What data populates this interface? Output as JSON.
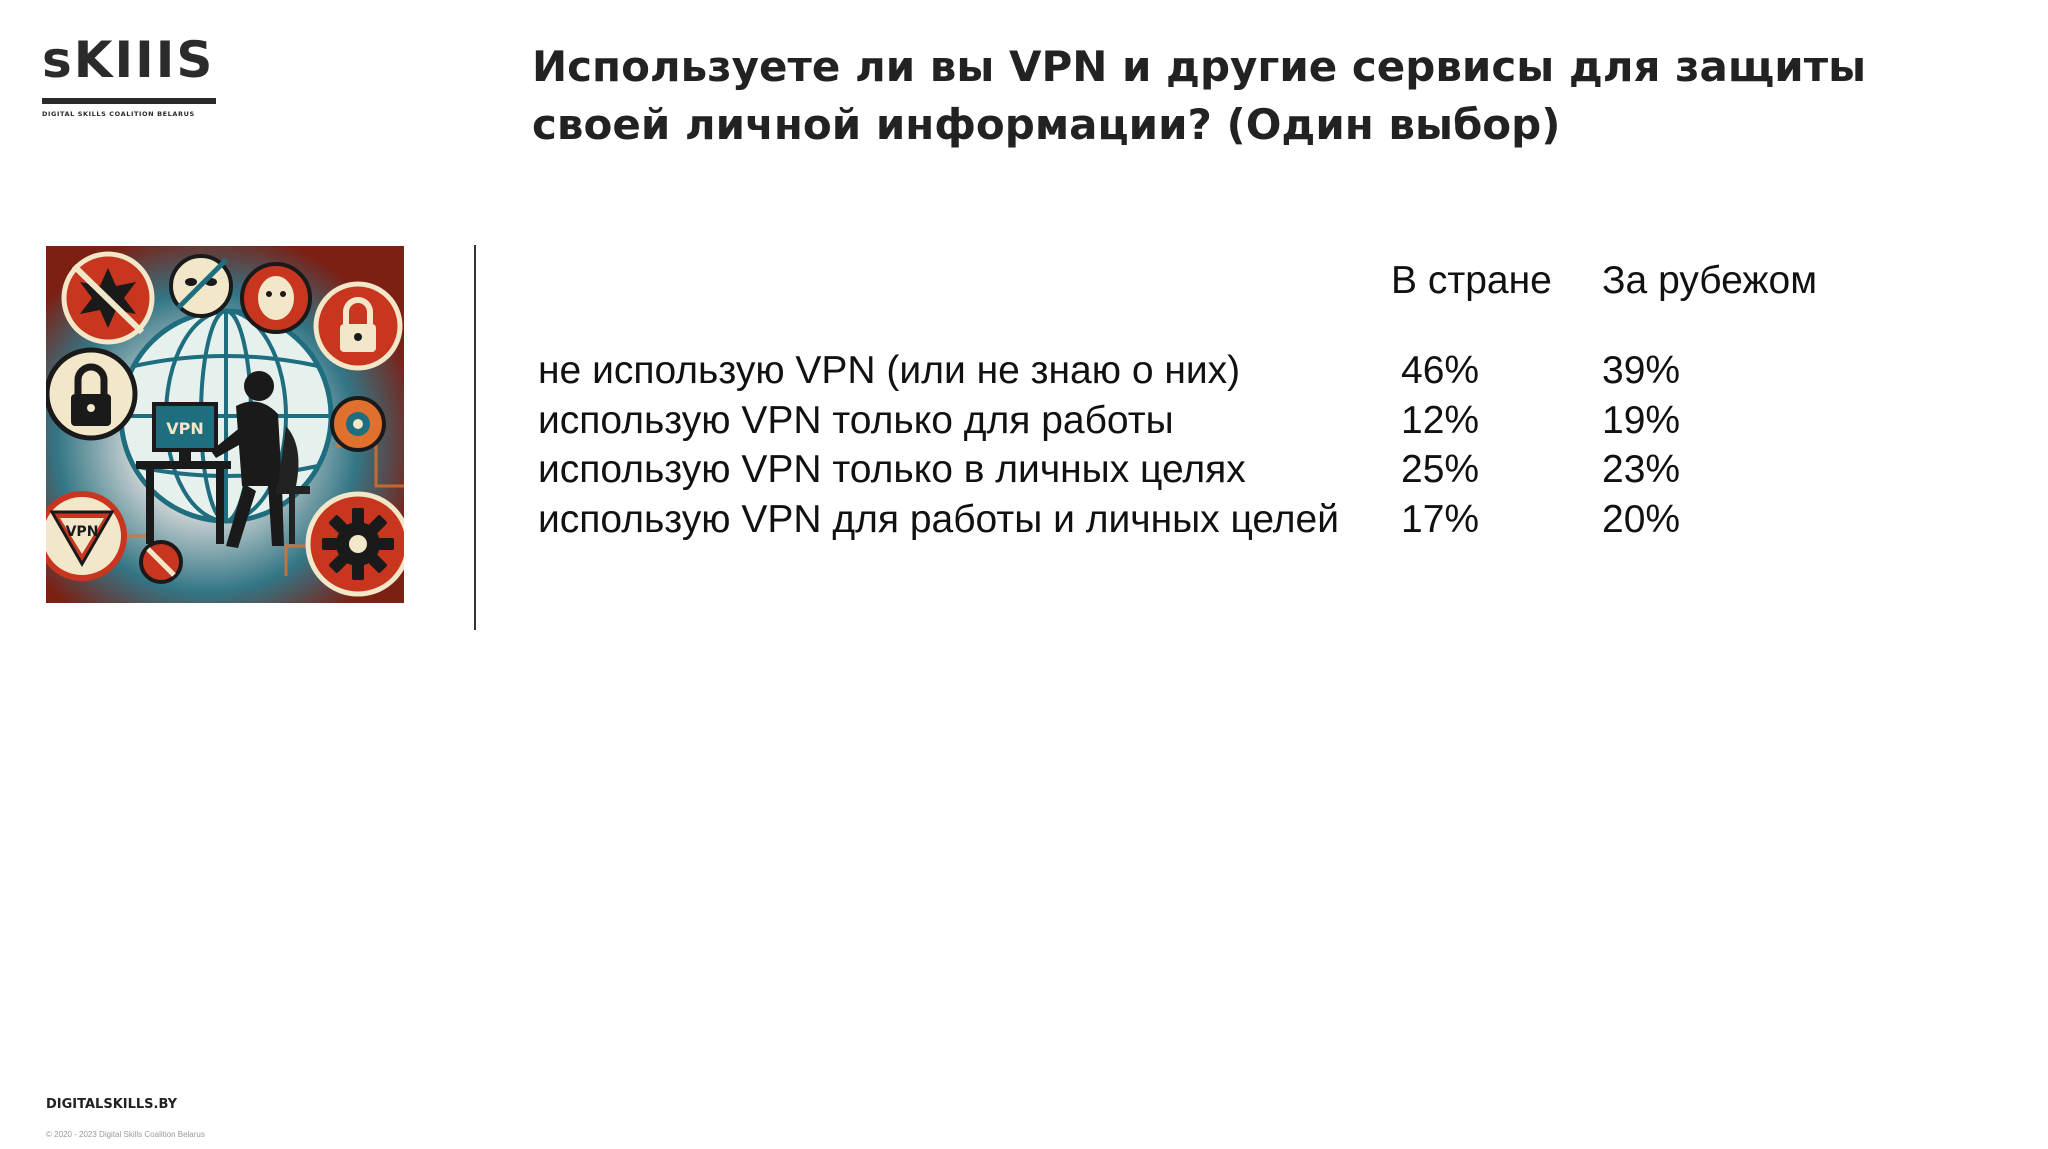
{
  "logo": {
    "wordmark": "sKIIIS",
    "tagline": "DIGITAL SKILLS COALITION BELARUS"
  },
  "title": "Используете ли вы VPN и другие сервисы для защиты своей личной информации? (Один выбор)",
  "illustration": {
    "monitor_text": "VPN",
    "sign_text": "VPN",
    "icons": [
      "lock-icon",
      "padlock-icon",
      "mask-icon",
      "gear-icon",
      "globe-icon",
      "hacker-silhouette"
    ],
    "colors": {
      "red": "#c8361f",
      "orange": "#e0702e",
      "teal": "#1e6e80",
      "cream": "#f3e7c9",
      "dark": "#1a1a1a"
    }
  },
  "table": {
    "columns": {
      "domestic": "В стране",
      "abroad": "За рубежом"
    },
    "rows": [
      {
        "label": "не использую VPN (или не знаю о них)",
        "domestic": "46%",
        "abroad": "39%"
      },
      {
        "label": "использую VPN только для работы",
        "domestic": "12%",
        "abroad": "19%"
      },
      {
        "label": "использую VPN только в личных целях",
        "domestic": "25%",
        "abroad": "23%"
      },
      {
        "label": "использую VPN для работы и личных целей",
        "domestic": "17%",
        "abroad": "20%"
      }
    ]
  },
  "footer": {
    "site": "DIGITALSKILLS.BY",
    "copyright": "© 2020 - 2023 Digital Skills Coalition Belarus"
  }
}
